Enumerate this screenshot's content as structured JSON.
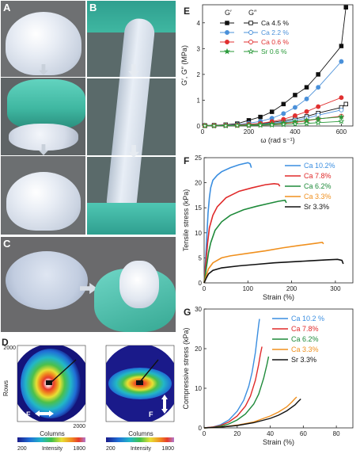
{
  "panel_labels": {
    "a": "A",
    "b": "B",
    "c": "C",
    "d": "D",
    "e": "E",
    "f": "F",
    "g": "G"
  },
  "panel_d": {
    "ylabel": "Rows",
    "xlabel": "Columns",
    "y_max_label": "2000",
    "x_max_label": "2000",
    "force_label": "F",
    "cbar_label": "Intensity",
    "cbar_min": "200",
    "cbar_max": "1800"
  },
  "colors": {
    "ca45": "#111111",
    "ca22": "#4a90d9",
    "ca06": "#e03030",
    "sr06": "#2a9a3a",
    "ca102": "#3a8ee0",
    "ca78": "#e02a2a",
    "ca62": "#1e8a3a",
    "ca33": "#f0901e",
    "sr33": "#111111",
    "skin": "#e8eef6",
    "glove": "#4fc7b3",
    "photo_bg": "#6c6c6c"
  },
  "chart_data": [
    {
      "panel": "E",
      "type": "line",
      "xlabel": "ω (rad s⁻¹)",
      "ylabel": "G′, G″ (MPa)",
      "xlim": [
        0,
        650
      ],
      "ylim": [
        0,
        4.7
      ],
      "xticks": [
        0,
        200,
        400,
        600
      ],
      "yticks": [
        0,
        1,
        2,
        3,
        4
      ],
      "legend_headers": [
        "G′",
        "G″"
      ],
      "series": [
        {
          "name": "Ca 4.5 %",
          "modulus": "G′",
          "marker": "square-filled",
          "x": [
            10,
            50,
            100,
            150,
            200,
            250,
            300,
            350,
            400,
            450,
            500,
            600,
            620
          ],
          "y": [
            0.02,
            0.03,
            0.05,
            0.09,
            0.22,
            0.35,
            0.55,
            0.85,
            1.2,
            1.5,
            2.0,
            3.1,
            4.6
          ]
        },
        {
          "name": "Ca 4.5 %",
          "modulus": "G″",
          "marker": "square-open",
          "x": [
            10,
            50,
            100,
            150,
            200,
            250,
            300,
            350,
            400,
            450,
            500,
            600,
            620
          ],
          "y": [
            0.01,
            0.02,
            0.03,
            0.04,
            0.06,
            0.09,
            0.14,
            0.2,
            0.28,
            0.37,
            0.5,
            0.72,
            0.85
          ]
        },
        {
          "name": "Ca 2.2 %",
          "modulus": "G′",
          "marker": "circle-filled",
          "x": [
            10,
            50,
            100,
            150,
            200,
            250,
            300,
            350,
            400,
            450,
            500,
            600
          ],
          "y": [
            0.01,
            0.02,
            0.04,
            0.06,
            0.11,
            0.18,
            0.3,
            0.48,
            0.72,
            1.05,
            1.5,
            2.5
          ]
        },
        {
          "name": "Ca 2.2 %",
          "modulus": "G″",
          "marker": "circle-open",
          "x": [
            10,
            50,
            100,
            150,
            200,
            250,
            300,
            350,
            400,
            450,
            500,
            600
          ],
          "y": [
            0.01,
            0.01,
            0.02,
            0.03,
            0.05,
            0.07,
            0.1,
            0.15,
            0.22,
            0.3,
            0.42,
            0.62
          ]
        },
        {
          "name": "Ca 0.6 %",
          "modulus": "G′",
          "marker": "circle-filled",
          "x": [
            10,
            50,
            100,
            150,
            200,
            250,
            300,
            350,
            400,
            450,
            500,
            600
          ],
          "y": [
            0.01,
            0.02,
            0.03,
            0.04,
            0.07,
            0.1,
            0.17,
            0.26,
            0.4,
            0.56,
            0.75,
            1.1
          ]
        },
        {
          "name": "Ca 0.6 %",
          "modulus": "G″",
          "marker": "circle-open",
          "x": [
            10,
            50,
            100,
            150,
            200,
            250,
            300,
            350,
            400,
            450,
            500,
            600
          ],
          "y": [
            0.01,
            0.01,
            0.02,
            0.02,
            0.03,
            0.05,
            0.07,
            0.1,
            0.14,
            0.2,
            0.27,
            0.38
          ]
        },
        {
          "name": "Sr 0.6 %",
          "modulus": "G′",
          "marker": "star-filled",
          "x": [
            10,
            50,
            100,
            150,
            200,
            250,
            300,
            350,
            400,
            450,
            500,
            600
          ],
          "y": [
            0.01,
            0.01,
            0.02,
            0.03,
            0.04,
            0.06,
            0.08,
            0.12,
            0.17,
            0.22,
            0.28,
            0.35
          ]
        },
        {
          "name": "Sr 0.6 %",
          "modulus": "G″",
          "marker": "star-open",
          "x": [
            10,
            50,
            100,
            150,
            200,
            250,
            300,
            350,
            400,
            450,
            500,
            600
          ],
          "y": [
            0.01,
            0.01,
            0.01,
            0.02,
            0.02,
            0.03,
            0.04,
            0.06,
            0.08,
            0.1,
            0.13,
            0.18
          ]
        }
      ]
    },
    {
      "panel": "F",
      "type": "line",
      "xlabel": "Strain (%)",
      "ylabel": "Tensile stress (kPa)",
      "xlim": [
        0,
        340
      ],
      "ylim": [
        0,
        25
      ],
      "xticks": [
        0,
        100,
        200,
        300
      ],
      "yticks": [
        0,
        5,
        10,
        15,
        20,
        25
      ],
      "series": [
        {
          "name": "Ca 10.2%",
          "x": [
            0,
            3,
            6,
            9,
            12,
            15,
            20,
            30,
            40,
            60,
            80,
            100,
            105,
            108
          ],
          "y": [
            0,
            4,
            9,
            14,
            17,
            19,
            20.5,
            21.5,
            22.2,
            23,
            23.6,
            24,
            23.8,
            23
          ]
        },
        {
          "name": "Ca 7.8%",
          "x": [
            0,
            4,
            8,
            12,
            20,
            30,
            50,
            80,
            110,
            140,
            160,
            170,
            173
          ],
          "y": [
            0,
            4,
            8,
            11,
            13.5,
            15.2,
            17,
            18.3,
            19,
            19.6,
            19.8,
            19.7,
            19.3
          ]
        },
        {
          "name": "Ca 6.2%",
          "x": [
            0,
            5,
            10,
            15,
            25,
            40,
            60,
            90,
            120,
            150,
            170,
            185,
            188
          ],
          "y": [
            0,
            3,
            6,
            8,
            10.5,
            12.2,
            13.5,
            14.6,
            15.3,
            15.9,
            16.3,
            16.5,
            16
          ]
        },
        {
          "name": "Ca 3.3%",
          "x": [
            0,
            5,
            10,
            20,
            40,
            60,
            100,
            140,
            180,
            220,
            255,
            270,
            273
          ],
          "y": [
            0,
            1.5,
            2.8,
            4,
            5,
            5.4,
            5.9,
            6.4,
            7,
            7.5,
            7.9,
            8.1,
            7.8
          ]
        },
        {
          "name": "Sr 3.3%",
          "x": [
            0,
            5,
            10,
            20,
            40,
            80,
            120,
            160,
            200,
            240,
            280,
            305,
            315,
            318
          ],
          "y": [
            0,
            1,
            1.8,
            2.5,
            3,
            3.4,
            3.7,
            4,
            4.2,
            4.4,
            4.6,
            4.7,
            4.5,
            3.8
          ]
        }
      ]
    },
    {
      "panel": "G",
      "type": "line",
      "xlabel": "Strain (%)",
      "ylabel": "Compressive stress (kPa)",
      "xlim": [
        0,
        90
      ],
      "ylim": [
        0,
        30
      ],
      "xticks": [
        0,
        20,
        40,
        60,
        80
      ],
      "yticks": [
        0,
        10,
        20,
        30
      ],
      "series": [
        {
          "name": "Ca 10.2 %",
          "x": [
            0,
            5,
            10,
            15,
            20,
            24,
            27,
            29,
            31,
            32,
            33,
            33.5
          ],
          "y": [
            0,
            0.2,
            0.8,
            2,
            4.2,
            7,
            10.5,
            14,
            19,
            22.5,
            26,
            27.5
          ]
        },
        {
          "name": "Ca 7.8%",
          "x": [
            0,
            5,
            10,
            15,
            20,
            25,
            28,
            31,
            33,
            34,
            35
          ],
          "y": [
            0,
            0.2,
            0.6,
            1.5,
            3,
            5.5,
            8,
            12,
            16,
            18.5,
            20.5
          ]
        },
        {
          "name": "Ca 6.2%",
          "x": [
            0,
            5,
            10,
            15,
            20,
            25,
            30,
            33,
            36,
            38,
            39
          ],
          "y": [
            0,
            0.1,
            0.4,
            1,
            2,
            3.5,
            6,
            8.5,
            12.5,
            16,
            18
          ]
        },
        {
          "name": "Ca 3.3%",
          "x": [
            0,
            10,
            20,
            30,
            40,
            45,
            50,
            53,
            55,
            56
          ],
          "y": [
            0,
            0.2,
            0.7,
            1.5,
            3,
            4,
            5.3,
            6.5,
            7.4,
            7.8
          ]
        },
        {
          "name": "Sr 3.3%",
          "x": [
            0,
            10,
            20,
            30,
            40,
            45,
            50,
            55,
            57,
            58.5
          ],
          "y": [
            0,
            0.2,
            0.6,
            1.3,
            2.4,
            3.2,
            4.3,
            5.8,
            6.7,
            7.3
          ]
        }
      ]
    }
  ]
}
